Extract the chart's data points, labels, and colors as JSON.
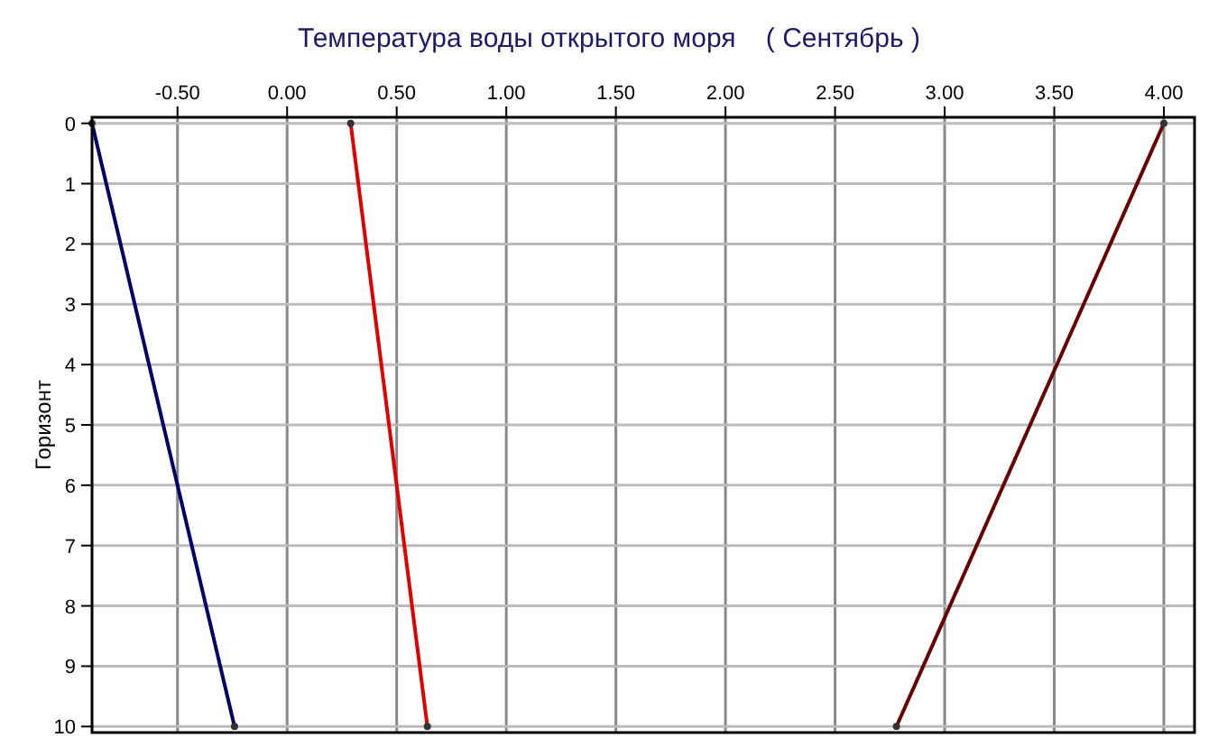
{
  "chart_data": {
    "type": "line",
    "title": "Температура воды открытого моря    ( Сентябрь )",
    "ylabel": "Горизонт",
    "xlim": [
      -0.89,
      4.14
    ],
    "ylim": [
      10.1,
      -0.1
    ],
    "xticks": [
      {
        "value": -0.5,
        "label": "-0.50"
      },
      {
        "value": 0,
        "label": "0.00"
      },
      {
        "value": 0.5,
        "label": "0.50"
      },
      {
        "value": 1,
        "label": "1.00"
      },
      {
        "value": 1.5,
        "label": "1.50"
      },
      {
        "value": 2,
        "label": "2.00"
      },
      {
        "value": 2.5,
        "label": "2.50"
      },
      {
        "value": 3,
        "label": "3.00"
      },
      {
        "value": 3.5,
        "label": "3.50"
      },
      {
        "value": 4,
        "label": "4.00"
      }
    ],
    "yticks": [
      0,
      1,
      2,
      3,
      4,
      5,
      6,
      7,
      8,
      9,
      10
    ],
    "grid": true,
    "marker": "circle",
    "line_style": "solid",
    "series": [
      {
        "color": "#000066",
        "x": [
          -0.89,
          -0.24
        ],
        "values": [
          0,
          10
        ]
      },
      {
        "color": "#e00000",
        "x": [
          0.29,
          0.64
        ],
        "values": [
          0,
          10
        ]
      },
      {
        "color": "#660000",
        "x": [
          4.0,
          2.78
        ],
        "values": [
          0,
          10
        ]
      }
    ]
  }
}
